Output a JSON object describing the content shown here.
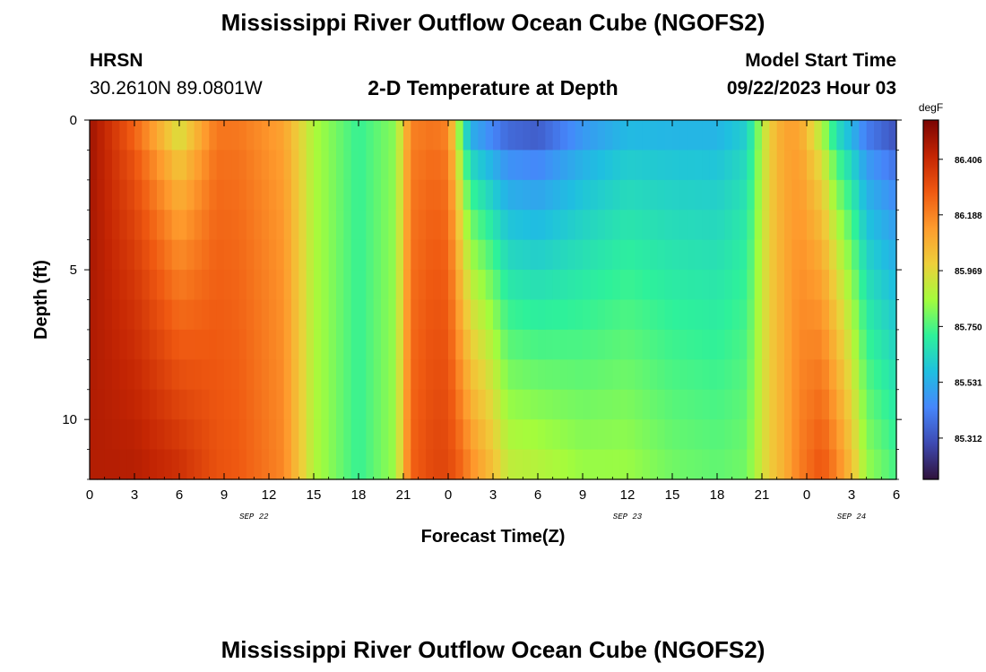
{
  "header": {
    "title": "Mississippi River Outflow Ocean Cube (NGOFS2)",
    "station": "HRSN",
    "coords": "30.2610N  89.0801W",
    "plot_title": "2-D Temperature at Depth",
    "model_label": "Model Start Time",
    "model_time": "09/22/2023 Hour 03",
    "bottom_title": "Mississippi River Outflow Ocean Cube (NGOFS2)"
  },
  "chart_data": {
    "type": "heatmap",
    "title": "2-D Temperature at Depth",
    "xlabel": "Forecast Time(Z)",
    "ylabel": "Depth (ft)",
    "x_tick_labels": [
      "0",
      "3",
      "6",
      "9",
      "12",
      "15",
      "18",
      "21",
      "0",
      "3",
      "6",
      "9",
      "12",
      "15",
      "18",
      "21",
      "0",
      "3",
      "6"
    ],
    "x_ticks_hours": [
      0,
      3,
      6,
      9,
      12,
      15,
      18,
      21,
      24,
      27,
      30,
      33,
      36,
      39,
      42,
      45,
      48,
      51,
      54
    ],
    "x_range_hours": [
      0,
      54
    ],
    "date_labels": [
      {
        "text": "SEP 22",
        "hour": 11
      },
      {
        "text": "SEP 23",
        "hour": 36
      },
      {
        "text": "SEP 24",
        "hour": 51
      }
    ],
    "y_tick_labels": [
      "0",
      "5",
      "10"
    ],
    "y_ticks": [
      0,
      5,
      10
    ],
    "y_range": [
      0,
      12
    ],
    "y_inverted": true,
    "colorbar": {
      "unit": "degF",
      "labels": [
        "86.406",
        "86.188",
        "85.969",
        "85.750",
        "85.531",
        "85.312"
      ],
      "values": [
        86.406,
        86.188,
        85.969,
        85.75,
        85.531,
        85.312
      ],
      "range": [
        85.15,
        86.56
      ]
    },
    "colormap": [
      "#30123b",
      "#3e4ab2",
      "#4686fb",
      "#1fbfe0",
      "#2ef19a",
      "#a4fc3c",
      "#eecf3a",
      "#fe9b2d",
      "#ef5911",
      "#c42503",
      "#7a0403"
    ],
    "field_description_points": {
      "time_hours": [
        0,
        3,
        6,
        8.5,
        10,
        13,
        15,
        18,
        20.5,
        21.5,
        23,
        24,
        25,
        25.5,
        27,
        28,
        30,
        33,
        36,
        39,
        42,
        44,
        45.5,
        46.5,
        47.5,
        49,
        50,
        51,
        52,
        54
      ],
      "surface_degF": [
        86.5,
        86.22,
        85.85,
        86.2,
        86.2,
        86.1,
        85.87,
        85.72,
        85.82,
        86.18,
        86.2,
        86.16,
        85.6,
        85.4,
        85.3,
        85.25,
        85.22,
        85.4,
        85.5,
        85.5,
        85.5,
        85.58,
        86.0,
        86.12,
        86.1,
        85.8,
        85.55,
        85.45,
        85.32,
        85.22
      ],
      "bottom_degF": [
        86.45,
        86.45,
        86.4,
        86.3,
        86.28,
        86.18,
        85.88,
        85.72,
        85.85,
        86.26,
        86.33,
        86.33,
        86.25,
        86.18,
        86.05,
        85.92,
        85.9,
        85.85,
        85.85,
        85.8,
        85.78,
        85.8,
        86.0,
        86.08,
        86.2,
        86.3,
        86.2,
        86.05,
        85.85,
        85.75
      ]
    }
  }
}
